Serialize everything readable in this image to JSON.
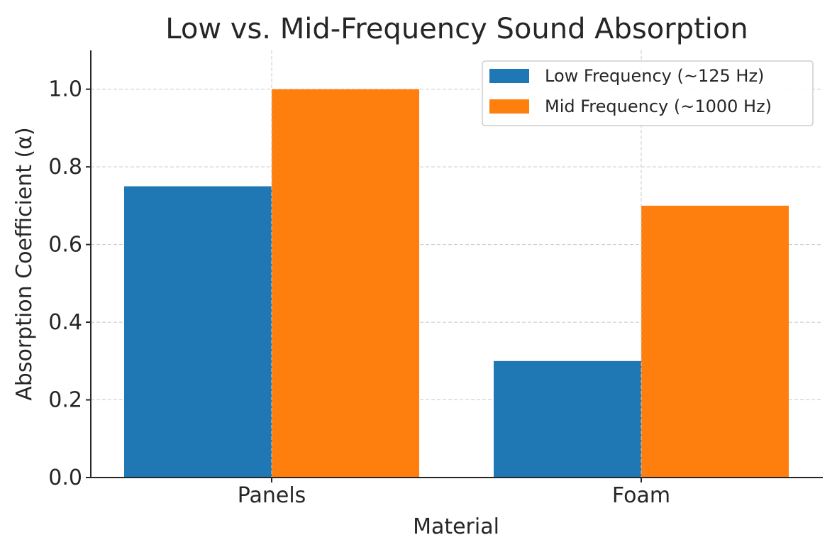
{
  "chart_data": {
    "type": "bar",
    "title": "Low vs. Mid-Frequency Sound Absorption",
    "xlabel": "Material",
    "ylabel": "Absorption Coefficient (α)",
    "categories": [
      "Panels",
      "Foam"
    ],
    "series": [
      {
        "name": "Low Frequency (~125 Hz)",
        "values": [
          0.75,
          0.3
        ],
        "color": "#1f77b4"
      },
      {
        "name": "Mid Frequency (~1000 Hz)",
        "values": [
          1.0,
          0.7
        ],
        "color": "#ff7f0e"
      }
    ],
    "ylim": [
      0,
      1.1
    ],
    "yticks": [
      "0.0",
      "0.2",
      "0.4",
      "0.6",
      "0.8",
      "1.0"
    ],
    "grid": true,
    "legend_position": "top-right"
  }
}
